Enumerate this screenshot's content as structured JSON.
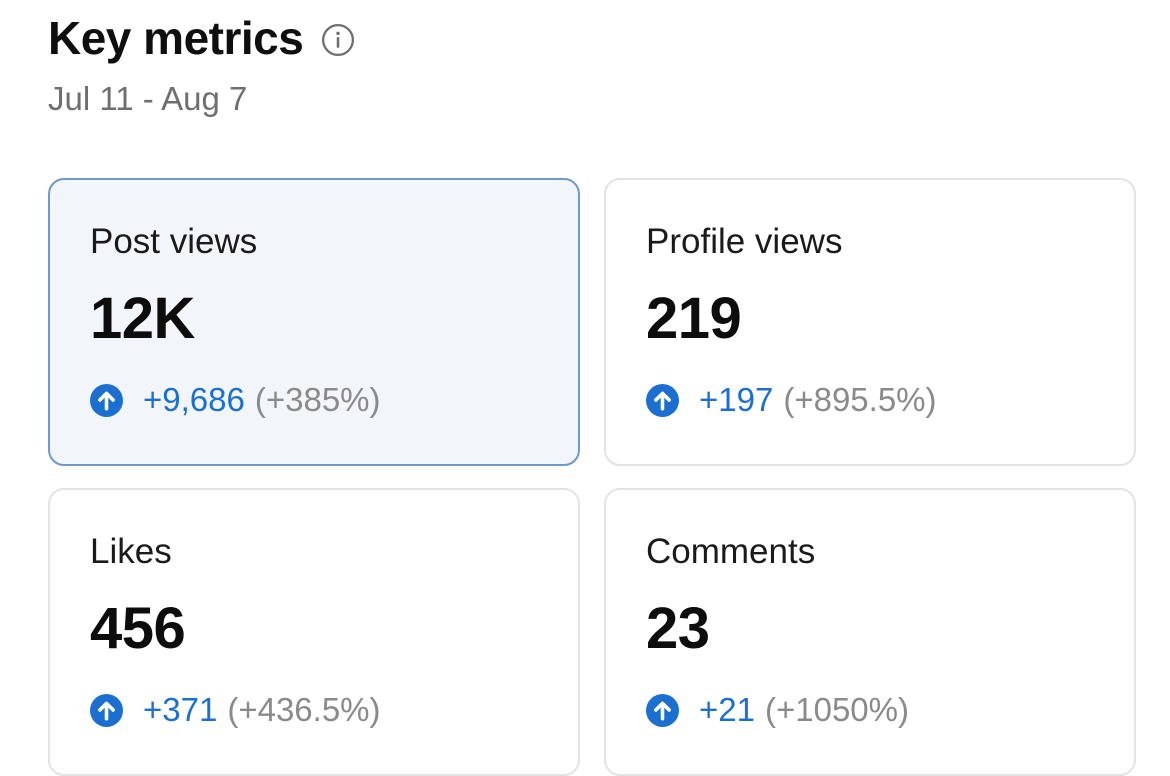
{
  "header": {
    "title": "Key metrics",
    "date_range": "Jul 11 - Aug 7"
  },
  "metrics": [
    {
      "label": "Post views",
      "value": "12K",
      "delta": "+9,686",
      "delta_pct": "(+385%)",
      "selected": true
    },
    {
      "label": "Profile views",
      "value": "219",
      "delta": "+197",
      "delta_pct": "(+895.5%)",
      "selected": false
    },
    {
      "label": "Likes",
      "value": "456",
      "delta": "+371",
      "delta_pct": "(+436.5%)",
      "selected": false
    },
    {
      "label": "Comments",
      "value": "23",
      "delta": "+21",
      "delta_pct": "(+1050%)",
      "selected": false
    }
  ],
  "colors": {
    "accent": "#1a6fd1",
    "selected_border": "#6d99cf",
    "selected_bg": "#f2f6fb",
    "muted_text": "#8a8a8a"
  },
  "icons": {
    "info": "info-circle-icon",
    "trend": "arrow-up-circle-icon"
  }
}
